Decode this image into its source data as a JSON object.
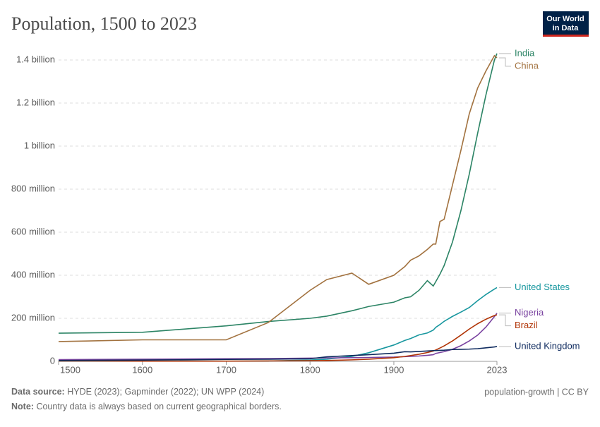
{
  "chart_data": {
    "type": "line",
    "title": "Population, 1500 to 2023",
    "logo": [
      "Our World",
      "in Data"
    ],
    "source_label": "Data source:",
    "source": "HYDE (2023); Gapminder (2022); UN WPP (2024)",
    "note_label": "Note:",
    "note": "Country data is always based on current geographical borders.",
    "footer_right": "population-growth | CC BY",
    "x": [
      1500,
      1600,
      1700,
      1750,
      1800,
      1820,
      1850,
      1870,
      1900,
      1913,
      1920,
      1930,
      1940,
      1947,
      1950,
      1955,
      1960,
      1970,
      1980,
      1990,
      2000,
      2010,
      2020,
      2023
    ],
    "xlim": [
      1500,
      2023
    ],
    "xticks": [
      1500,
      1600,
      1700,
      1800,
      1900,
      2023
    ],
    "ylim": [
      0,
      1400000000
    ],
    "yticks": [
      0,
      {
        "value": 200000000,
        "label": "200 million"
      },
      {
        "value": 400000000,
        "label": "400 million"
      },
      {
        "value": 600000000,
        "label": "600 million"
      },
      {
        "value": 800000000,
        "label": "800 million"
      },
      {
        "value": 1000000000,
        "label": "1 billion"
      },
      {
        "value": 1200000000,
        "label": "1.2 billion"
      },
      {
        "value": 1400000000,
        "label": "1.4 billion"
      }
    ],
    "grid": true,
    "series": [
      {
        "name": "India",
        "color": "#2c8465",
        "values": [
          131000000,
          135000000,
          165000000,
          185000000,
          200000000,
          210000000,
          235000000,
          255000000,
          275000000,
          295000000,
          300000000,
          330000000,
          375000000,
          350000000,
          370000000,
          405000000,
          445000000,
          555000000,
          700000000,
          870000000,
          1060000000,
          1240000000,
          1400000000,
          1430000000
        ]
      },
      {
        "name": "China",
        "color": "#a2723f",
        "values": [
          92000000,
          100000000,
          100000000,
          180000000,
          330000000,
          380000000,
          410000000,
          358000000,
          400000000,
          440000000,
          470000000,
          490000000,
          520000000,
          545000000,
          545000000,
          650000000,
          660000000,
          820000000,
          980000000,
          1150000000,
          1270000000,
          1350000000,
          1420000000,
          1410000000
        ]
      },
      {
        "name": "United States",
        "color": "#18979f",
        "values": [
          2000000,
          1500000,
          1000000,
          2000000,
          6000000,
          10000000,
          23000000,
          40000000,
          76000000,
          97000000,
          106000000,
          123000000,
          132000000,
          145000000,
          158000000,
          171000000,
          186000000,
          209000000,
          229000000,
          250000000,
          282000000,
          311000000,
          336000000,
          343000000
        ]
      },
      {
        "name": "Nigeria",
        "color": "#7a43a0",
        "values": [
          8000000,
          10000000,
          12000000,
          13000000,
          15000000,
          16000000,
          17000000,
          18000000,
          20000000,
          22000000,
          23000000,
          25000000,
          28000000,
          31000000,
          37000000,
          41000000,
          45000000,
          56000000,
          73000000,
          95000000,
          122000000,
          160000000,
          208000000,
          224000000
        ]
      },
      {
        "name": "Brazil",
        "color": "#b13507",
        "values": [
          2000000,
          1000000,
          1000000,
          2000000,
          3000000,
          4000000,
          7000000,
          10000000,
          17000000,
          23000000,
          27000000,
          33000000,
          41000000,
          48000000,
          53000000,
          62000000,
          72000000,
          95000000,
          122000000,
          150000000,
          175000000,
          196000000,
          213000000,
          216000000
        ]
      },
      {
        "name": "United Kingdom",
        "color": "#0e2a5e",
        "values": [
          4000000,
          6000000,
          9000000,
          10000000,
          12000000,
          21000000,
          27000000,
          31000000,
          38000000,
          45000000,
          44000000,
          46000000,
          48000000,
          50000000,
          50000000,
          51000000,
          52000000,
          55000000,
          56000000,
          57000000,
          59000000,
          63000000,
          67000000,
          69000000
        ]
      }
    ]
  }
}
